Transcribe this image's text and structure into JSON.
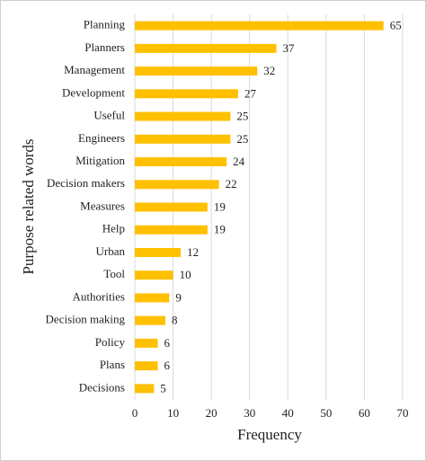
{
  "chart_data": {
    "type": "bar",
    "orientation": "horizontal",
    "x_label": "Frequency",
    "y_label": "Purpose related words",
    "categories": [
      "Planning",
      "Planners",
      "Management",
      "Development",
      "Useful",
      "Engineers",
      "Mitigation",
      "Decision makers",
      "Measures",
      "Help",
      "Urban",
      "Tool",
      "Authorities",
      "Decision making",
      "Policy",
      "Plans",
      "Decisions"
    ],
    "values": [
      65,
      37,
      32,
      27,
      25,
      25,
      24,
      22,
      19,
      19,
      12,
      10,
      9,
      8,
      6,
      6,
      5
    ],
    "color": "#FFC000",
    "xlim": [
      0,
      70
    ],
    "xticks": [
      0,
      10,
      20,
      30,
      40,
      50,
      60,
      70
    ],
    "grid": true
  }
}
